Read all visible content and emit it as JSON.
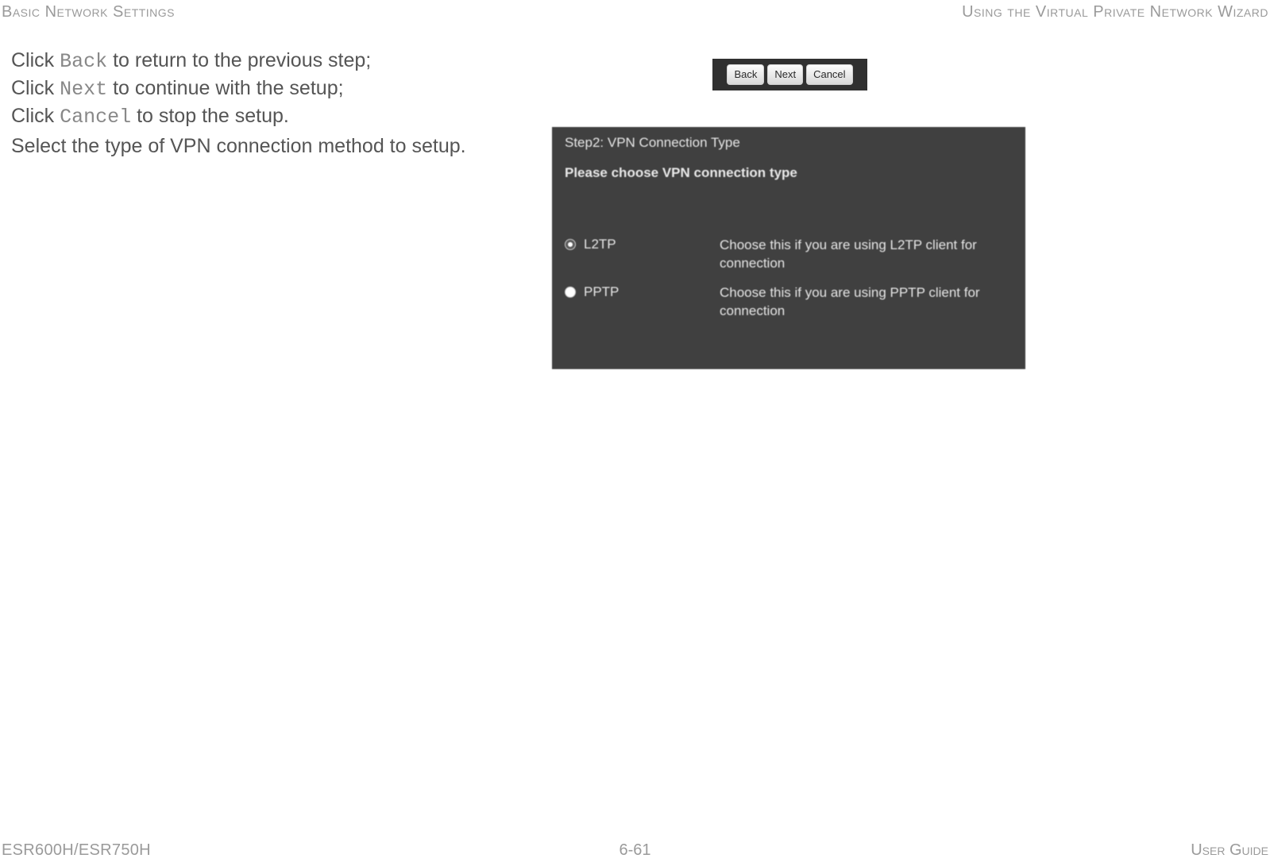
{
  "header": {
    "left": "Basic Network Settings",
    "right": "Using the Virtual Private Network Wizard"
  },
  "instructions": {
    "line1_prefix": "Click ",
    "line1_mono": "Back",
    "line1_suffix": " to return to the previous step;",
    "line2_prefix": "Click ",
    "line2_mono": "Next",
    "line2_suffix": " to continue with the setup;",
    "line3_prefix": "Click ",
    "line3_mono": "Cancel",
    "line3_suffix": " to stop the setup."
  },
  "select_line": "Select the type of VPN connection method to setup.",
  "button_bar": {
    "back": "Back",
    "next": "Next",
    "cancel": "Cancel"
  },
  "vpn_panel": {
    "step_title": "Step2: VPN Connection Type",
    "subtitle": "Please choose VPN connection type",
    "options": [
      {
        "label": "L2TP",
        "desc": "Choose this if you are using L2TP client for connection",
        "selected": true
      },
      {
        "label": "PPTP",
        "desc": "Choose this if you are using PPTP client for connection",
        "selected": false
      }
    ]
  },
  "footer": {
    "left": "ESR600H/ESR750H",
    "center": "6-61",
    "right": "User Guide"
  },
  "colors": {
    "page_bg": "#ffffff",
    "body_text": "#555555",
    "muted_text": "#9a9a9a",
    "panel_bg": "#404040",
    "panel_text": "#e6e6e6",
    "btn_bar_bg": "#303030"
  }
}
